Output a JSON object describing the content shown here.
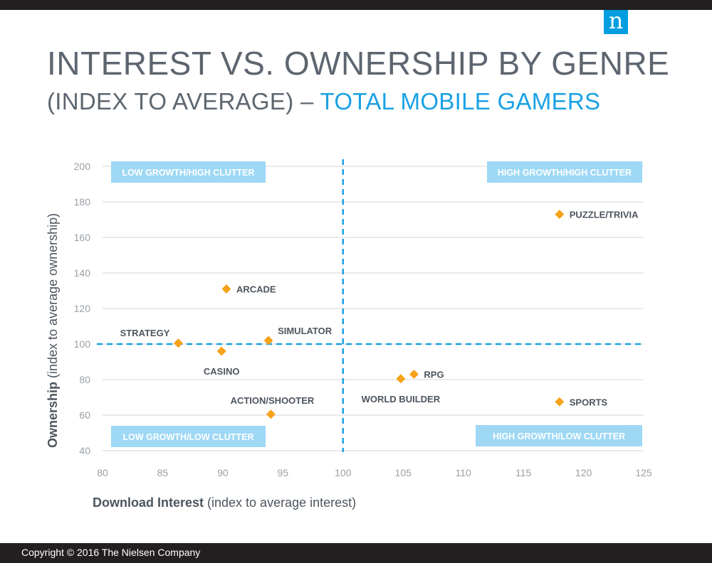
{
  "header": {
    "logo_letter": "n",
    "title": "INTEREST VS. OWNERSHIP BY GENRE",
    "subtitle_prefix": "(INDEX TO AVERAGE) – ",
    "subtitle_accent": "TOTAL MOBILE GAMERS"
  },
  "colors": {
    "accent": "#1aa1e3",
    "marker": "#f7a21b",
    "quadrant_box": "#9ed8f5",
    "text_gray": "#5d6670",
    "bar_dark": "#231f20"
  },
  "chart_data": {
    "type": "scatter",
    "title": "",
    "xlabel_bold": "Download Interest",
    "xlabel_rest": " (index to average interest)",
    "ylabel_bold": "Ownership",
    "ylabel_rest": " (index to average ownership)",
    "xlim": [
      80,
      125
    ],
    "ylim": [
      40,
      200
    ],
    "x_ticks": [
      80,
      85,
      90,
      95,
      100,
      105,
      110,
      115,
      120,
      125
    ],
    "y_ticks": [
      40,
      60,
      80,
      100,
      120,
      140,
      160,
      180,
      200
    ],
    "grid": "horizontal",
    "reference_lines": {
      "x": 100,
      "y": 100
    },
    "quadrants": [
      {
        "label": "LOW GROWTH/HIGH CLUTTER",
        "position": "top-left"
      },
      {
        "label": "HIGH GROWTH/HIGH CLUTTER",
        "position": "top-right"
      },
      {
        "label": "LOW GROWTH/LOW CLUTTER",
        "position": "bottom-left"
      },
      {
        "label": "HIGH GROWTH/LOW CLUTTER",
        "position": "bottom-right"
      }
    ],
    "points": [
      {
        "label": "PUZZLE/TRIVIA",
        "x": 118,
        "y": 173,
        "label_side": "right"
      },
      {
        "label": "ARCADE",
        "x": 90.3,
        "y": 131,
        "label_side": "right"
      },
      {
        "label": "STRATEGY",
        "x": 86.3,
        "y": 100.5,
        "label_side": "above-left"
      },
      {
        "label": "SIMULATOR",
        "x": 93.8,
        "y": 102,
        "label_side": "above-right"
      },
      {
        "label": "CASINO",
        "x": 89.9,
        "y": 96,
        "label_side": "below"
      },
      {
        "label": "RPG",
        "x": 105.9,
        "y": 83,
        "label_side": "right"
      },
      {
        "label": "WORLD BUILDER",
        "x": 104.8,
        "y": 80.5,
        "label_side": "below"
      },
      {
        "label": "SPORTS",
        "x": 118,
        "y": 67.5,
        "label_side": "right"
      },
      {
        "label": "ACTION/SHOOTER",
        "x": 94,
        "y": 60.5,
        "label_side": "above"
      }
    ]
  },
  "footer": {
    "copyright": "Copyright © 2016 The Nielsen Company"
  }
}
